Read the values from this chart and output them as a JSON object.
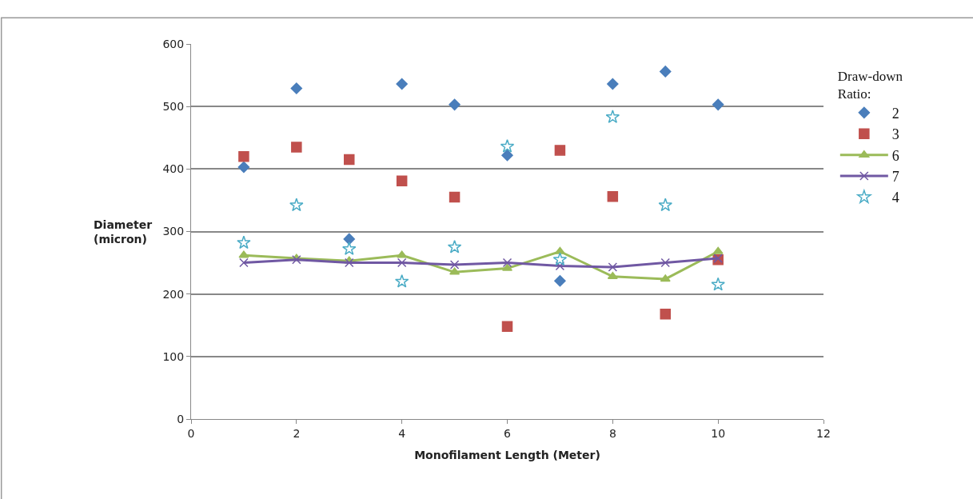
{
  "chart_data": {
    "type": "scatter",
    "xlabel": "Monofilament Length (Meter)",
    "ylabel": "Diameter (micron)",
    "legend_title": "Draw-down Ratio:",
    "x": [
      1,
      2,
      3,
      4,
      5,
      6,
      7,
      8,
      9,
      10
    ],
    "series": [
      {
        "name": "2",
        "marker": "diamond",
        "color": "#4a7ebb",
        "values": [
          403,
          529,
          288,
          536,
          503,
          422,
          221,
          536,
          556,
          503
        ]
      },
      {
        "name": "3",
        "marker": "square",
        "color": "#c0504d",
        "values": [
          420,
          435,
          415,
          381,
          355,
          148,
          430,
          356,
          168,
          255
        ]
      },
      {
        "name": "6",
        "type": "line",
        "marker": "triangle",
        "color": "#9bbb59",
        "values": [
          262,
          257,
          253,
          262,
          235,
          241,
          268,
          228,
          224,
          268
        ]
      },
      {
        "name": "7",
        "type": "line",
        "marker": "cross",
        "color": "#7058a3",
        "values": [
          250,
          255,
          250,
          250,
          247,
          250,
          245,
          243,
          250,
          257
        ]
      },
      {
        "name": "4",
        "marker": "star",
        "color": "#4bacc6",
        "values": [
          282,
          342,
          272,
          220,
          275,
          436,
          255,
          483,
          342,
          215
        ]
      }
    ],
    "xlim": [
      0,
      12
    ],
    "xticks": [
      0,
      2,
      4,
      6,
      8,
      10,
      12
    ],
    "ylim": [
      0,
      600
    ],
    "yticks": [
      0,
      100,
      200,
      300,
      400,
      500,
      600
    ],
    "grid": "y",
    "legend": "right"
  }
}
